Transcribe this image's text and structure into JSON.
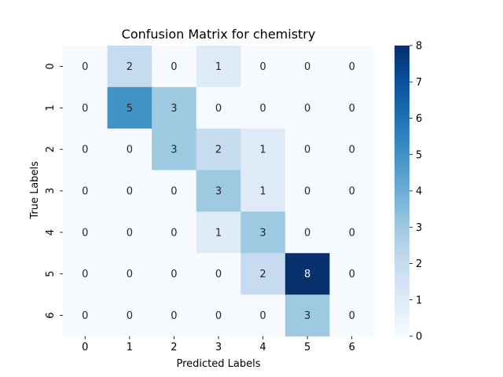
{
  "chart_data": {
    "type": "heatmap",
    "title": "Confusion Matrix for chemistry",
    "xlabel": "Predicted Labels",
    "ylabel": "True Labels",
    "x_categories": [
      "0",
      "1",
      "2",
      "3",
      "4",
      "5",
      "6"
    ],
    "y_categories": [
      "0",
      "1",
      "2",
      "3",
      "4",
      "5",
      "6"
    ],
    "matrix": [
      [
        0,
        2,
        0,
        1,
        0,
        0,
        0
      ],
      [
        0,
        5,
        3,
        0,
        0,
        0,
        0
      ],
      [
        0,
        0,
        3,
        2,
        1,
        0,
        0
      ],
      [
        0,
        0,
        0,
        3,
        1,
        0,
        0
      ],
      [
        0,
        0,
        0,
        1,
        3,
        0,
        0
      ],
      [
        0,
        0,
        0,
        0,
        2,
        8,
        0
      ],
      [
        0,
        0,
        0,
        0,
        0,
        3,
        0
      ]
    ],
    "annotated": true,
    "colormap": "Blues",
    "colorbar": {
      "range": [
        0,
        8
      ],
      "ticks": [
        "0",
        "1",
        "2",
        "3",
        "4",
        "5",
        "6",
        "7",
        "8"
      ]
    }
  }
}
